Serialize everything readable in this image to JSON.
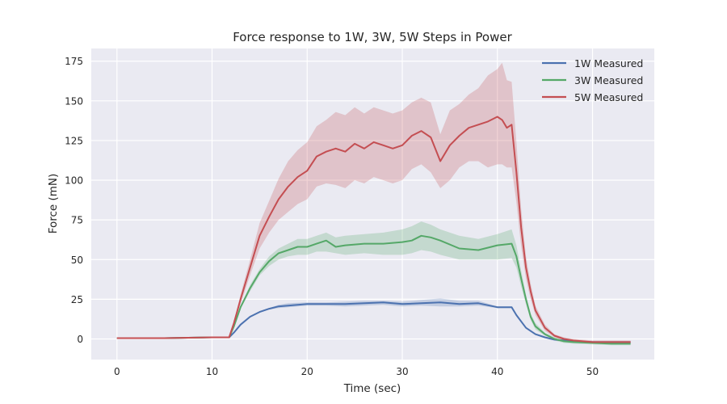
{
  "chart_data": {
    "type": "line",
    "title": "Force response to 1W, 3W, 5W Steps in Power",
    "xlabel": "Time (sec)",
    "ylabel": "Force (mN)",
    "xlim": [
      -2.7,
      56.5
    ],
    "ylim": [
      -13,
      183
    ],
    "xticks": [
      0,
      10,
      20,
      30,
      40,
      50
    ],
    "yticks": [
      0,
      25,
      50,
      75,
      100,
      125,
      150,
      175
    ],
    "grid": true,
    "legend_position": "top-right",
    "background": "#eaeaf2",
    "series": [
      {
        "name": "1W Measured",
        "color": "#4c72b0",
        "x": [
          0,
          5,
          10,
          11.8,
          12.3,
          13,
          14,
          15,
          16,
          17,
          18,
          20,
          22,
          24,
          26,
          28,
          30,
          32,
          34,
          36,
          38,
          40,
          41.5,
          42,
          43,
          44,
          45,
          46,
          47,
          48,
          50,
          52,
          54
        ],
        "y": [
          0.5,
          0.5,
          1,
          1,
          4,
          9,
          14,
          17,
          19,
          20.5,
          21,
          22,
          22,
          22,
          22.5,
          23,
          22,
          22.5,
          23,
          22,
          22.5,
          20,
          20,
          15,
          7,
          3,
          1,
          -0.5,
          -1,
          -1.5,
          -2,
          -2,
          -2
        ],
        "lower": [
          0.5,
          0.5,
          1,
          1,
          4,
          9,
          13.5,
          16.5,
          18.5,
          19.5,
          20,
          21,
          21,
          20.5,
          21,
          21.5,
          20.5,
          21,
          20.5,
          20.5,
          21,
          19.5,
          19.5,
          14.5,
          6.5,
          2.5,
          0.5,
          -1,
          -1.5,
          -2,
          -2.5,
          -2.5,
          -2.5
        ],
        "upper": [
          0.5,
          0.5,
          1,
          1,
          4,
          9,
          14.5,
          17.5,
          19.5,
          21.5,
          22.5,
          23,
          23,
          23.5,
          24,
          24,
          23.5,
          24.5,
          25.5,
          24,
          24,
          20.5,
          20.5,
          15.5,
          7.5,
          3.5,
          1.5,
          0,
          -0.5,
          -1,
          -1.5,
          -1.5,
          -1.5
        ]
      },
      {
        "name": "3W Measured",
        "color": "#55a868",
        "x": [
          0,
          5,
          10,
          11.8,
          12.3,
          13,
          14,
          15,
          16,
          17,
          18,
          19,
          20,
          21,
          22,
          23,
          24,
          26,
          28,
          30,
          31,
          32,
          33,
          34,
          36,
          38,
          40,
          41.5,
          42,
          42.5,
          43,
          43.5,
          44,
          45,
          46,
          47,
          48,
          50,
          52,
          54
        ],
        "y": [
          0.5,
          0.5,
          1,
          1,
          8,
          20,
          32,
          42,
          49,
          54,
          56,
          58,
          58,
          60,
          62,
          58,
          59,
          60,
          60,
          61,
          62,
          65,
          64,
          62,
          57,
          56,
          59,
          60,
          52,
          38,
          25,
          14,
          8,
          3,
          0,
          -1.5,
          -2,
          -2.5,
          -3,
          -3
        ],
        "lower": [
          0.5,
          0.5,
          1,
          1,
          7,
          19,
          30,
          40,
          46,
          50,
          52,
          53,
          53,
          55,
          55,
          54,
          53,
          54,
          53,
          53,
          54,
          56,
          55,
          53,
          50,
          50,
          50,
          51,
          45,
          33,
          22,
          12,
          6,
          2,
          -1,
          -2.5,
          -3,
          -3.5,
          -4,
          -4
        ],
        "upper": [
          0.5,
          0.5,
          1,
          1,
          9,
          21,
          34,
          44,
          52,
          57,
          60,
          63,
          63,
          65,
          67,
          64,
          65,
          66,
          67,
          69,
          71,
          74,
          72,
          69,
          65,
          63,
          66,
          69,
          59,
          43,
          28,
          16,
          10,
          4,
          1,
          -0.5,
          -1,
          -1.5,
          -2,
          -2
        ]
      },
      {
        "name": "5W Measured",
        "color": "#c44e52",
        "x": [
          0,
          5,
          10,
          11.8,
          12.3,
          13,
          14,
          15,
          16,
          17,
          18,
          19,
          20,
          21,
          22,
          23,
          24,
          25,
          26,
          27,
          28,
          29,
          30,
          31,
          32,
          33,
          34,
          35,
          36,
          37,
          38,
          39,
          40,
          40.5,
          41,
          41.5,
          42,
          42.5,
          43,
          43.5,
          44,
          45,
          46,
          47,
          48,
          50,
          52,
          54
        ],
        "y": [
          0.5,
          0.5,
          1,
          1,
          10,
          25,
          45,
          65,
          77,
          88,
          96,
          102,
          106,
          115,
          118,
          120,
          118,
          123,
          120,
          124,
          122,
          120,
          122,
          128,
          131,
          127,
          112,
          122,
          128,
          133,
          135,
          137,
          140,
          138,
          133,
          135,
          105,
          70,
          45,
          30,
          18,
          7,
          2,
          0,
          -1,
          -2,
          -2,
          -2
        ],
        "lower": [
          0.5,
          0.5,
          1,
          1,
          9,
          22,
          40,
          57,
          67,
          75,
          80,
          85,
          88,
          96,
          98,
          97,
          95,
          100,
          98,
          102,
          100,
          98,
          100,
          107,
          110,
          105,
          95,
          100,
          108,
          112,
          112,
          108,
          110,
          110,
          108,
          108,
          86,
          58,
          38,
          25,
          15,
          5,
          1,
          -1,
          -2,
          -3,
          -3,
          -3
        ],
        "upper": [
          0.5,
          0.5,
          1,
          1,
          11,
          28,
          50,
          73,
          87,
          101,
          112,
          119,
          124,
          134,
          138,
          143,
          141,
          146,
          142,
          146,
          144,
          142,
          144,
          149,
          152,
          149,
          129,
          144,
          148,
          154,
          158,
          166,
          170,
          174,
          163,
          162,
          124,
          82,
          52,
          35,
          21,
          9,
          3,
          1,
          0,
          -1,
          -1,
          -1
        ]
      }
    ]
  }
}
